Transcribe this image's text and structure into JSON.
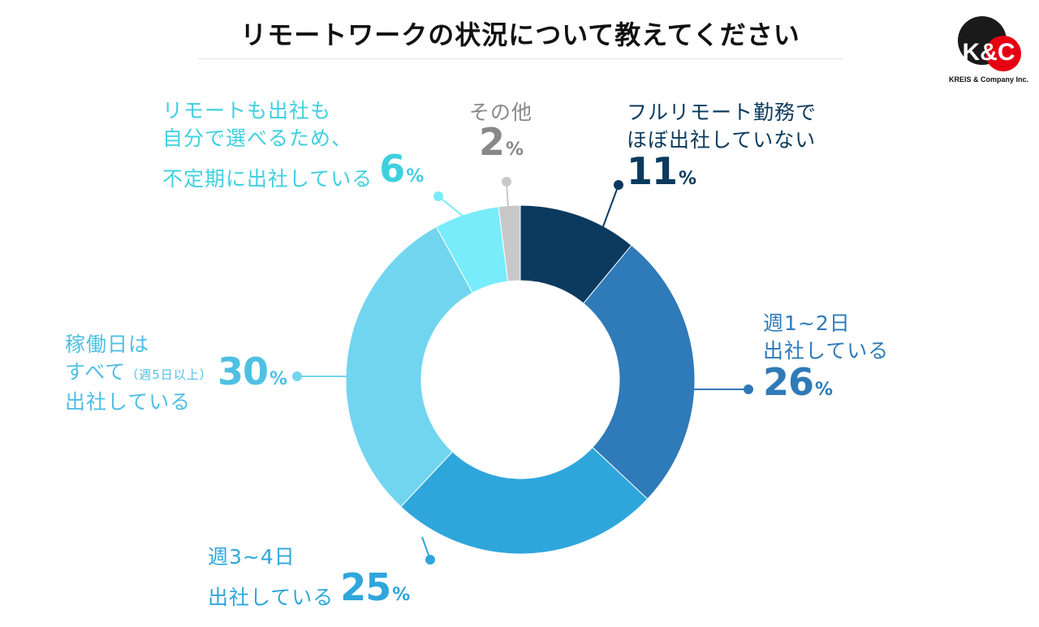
{
  "title": "リモートワークの状況について教えてください",
  "logo": {
    "text": "K&C",
    "company": "KREIS & Company Inc."
  },
  "chart_data": {
    "type": "pie",
    "donut": true,
    "title": "リモートワークの状況について教えてください",
    "slices": [
      {
        "label": "フルリモート勤務でほぼ出社していない",
        "lines": [
          "フルリモート勤務で",
          "ほぼ出社していない"
        ],
        "value": 11,
        "color": "#0b3a5e"
      },
      {
        "label": "週1~2日出社している",
        "lines": [
          "週1~2日",
          "出社している"
        ],
        "value": 26,
        "color": "#2f7ab8"
      },
      {
        "label": "週3~4日出社している",
        "lines": [
          "週3~4日",
          "出社している"
        ],
        "value": 25,
        "color": "#2ea6dc"
      },
      {
        "label": "稼働日はすべて（週5日以上）出社している",
        "lines": [
          "稼働日は",
          "すべて",
          "（週5日以上）",
          "出社している"
        ],
        "value": 30,
        "color": "#72d5ef"
      },
      {
        "label": "リモートも出社も自分で選べるため、不定期に出社している",
        "lines": [
          "リモートも出社も",
          "自分で選べるため、",
          "不定期に出社している"
        ],
        "value": 6,
        "color": "#78ecfa"
      },
      {
        "label": "その他",
        "lines": [
          "その他"
        ],
        "value": 2,
        "color": "#c8c8c8"
      }
    ],
    "unit": "%",
    "legend": "none (callout labels)"
  }
}
